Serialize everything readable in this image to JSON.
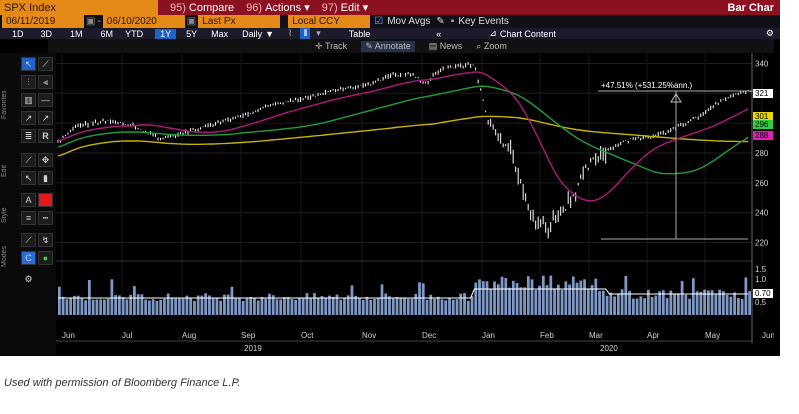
{
  "header": {
    "ticker": "SPX Index",
    "compare": {
      "num": "95)",
      "label": "Compare"
    },
    "actions": {
      "num": "96)",
      "label": "Actions"
    },
    "edit": {
      "num": "97)",
      "label": "Edit"
    },
    "chart_type": "Bar Char"
  },
  "controls": {
    "start_date": "06/11/2019",
    "end_date": "06/10/2020",
    "price_field": "Last Px",
    "currency": "Local CCY",
    "mov_avgs": "Mov Avgs",
    "key_events": "Key Events"
  },
  "periods": {
    "items": [
      "1D",
      "3D",
      "1M",
      "6M",
      "YTD",
      "1Y",
      "5Y",
      "Max"
    ],
    "selected": "1Y",
    "interval": "Daily",
    "table": "Table",
    "chart_content": "Chart Content"
  },
  "tools": {
    "track": "Track",
    "annotate": "Annotate",
    "news": "News",
    "zoom": "Zoom"
  },
  "side_labels": {
    "favorites": "Favorites",
    "edit": "Edit",
    "style": "Style",
    "modes": "Modes"
  },
  "chart_data": {
    "type": "candlestick",
    "y_ticks": [
      220,
      240,
      260,
      280,
      300,
      320,
      340
    ],
    "ylim": [
      213,
      347
    ],
    "month_labels": [
      "Jun",
      "Jul",
      "Aug",
      "Sep",
      "Oct",
      "Nov",
      "Dec",
      "Jan",
      "Feb",
      "Mar",
      "Apr",
      "May",
      "Jun"
    ],
    "year_labels": [
      "2019",
      "2020"
    ],
    "annotation": "+47.51% (+531.25%ann.)",
    "price_tags": [
      {
        "value": "321",
        "color": "#ffffff"
      },
      {
        "value": "301",
        "color": "#e6d800"
      },
      {
        "value": "296",
        "color": "#2ecf3a"
      },
      {
        "value": "288",
        "color": "#e021b8"
      }
    ],
    "volume_ticks": [
      "1.5",
      "1.0",
      "0.70",
      "0.5"
    ],
    "colors": {
      "price": "#ffffff",
      "ma_short": "#b0197e",
      "ma_mid": "#1e9e3a",
      "ma_long": "#c8b200",
      "volume": "#7f99c6"
    }
  },
  "caption": "Used with permission of Bloomberg Finance L.P."
}
